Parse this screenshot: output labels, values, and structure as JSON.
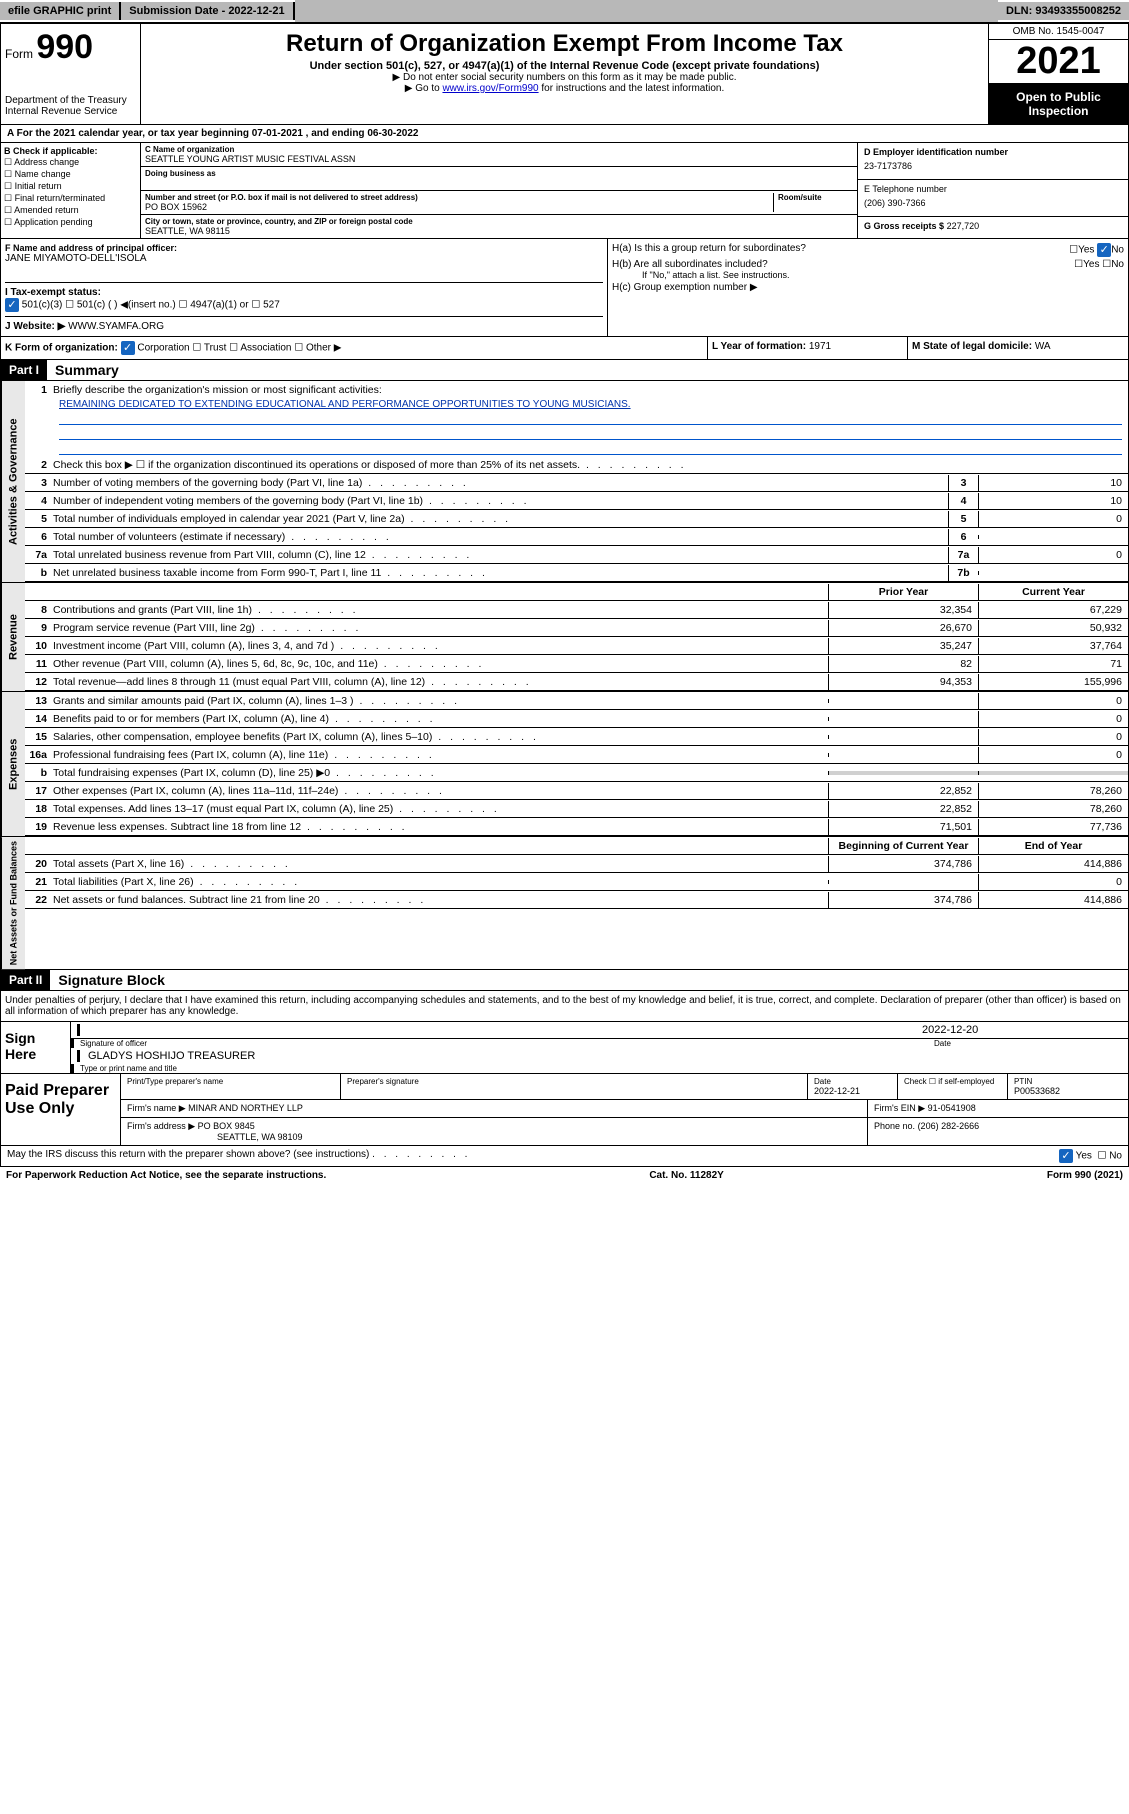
{
  "topbar": {
    "efile": "efile GRAPHIC print",
    "submission": "Submission Date - 2022-12-21",
    "dln": "DLN: 93493355008252"
  },
  "header": {
    "form_prefix": "Form",
    "form_number": "990",
    "dept": "Department of the Treasury",
    "irs": "Internal Revenue Service",
    "title": "Return of Organization Exempt From Income Tax",
    "subtitle": "Under section 501(c), 527, or 4947(a)(1) of the Internal Revenue Code (except private foundations)",
    "note1": "▶ Do not enter social security numbers on this form as it may be made public.",
    "note2_pre": "▶ Go to ",
    "note2_link": "www.irs.gov/Form990",
    "note2_post": " for instructions and the latest information.",
    "omb": "OMB No. 1545-0047",
    "year": "2021",
    "inspection": "Open to Public Inspection"
  },
  "line_a": "A For the 2021 calendar year, or tax year beginning 07-01-2021  , and ending 06-30-2022",
  "section_b": {
    "label": "B Check if applicable:",
    "opts": [
      "Address change",
      "Name change",
      "Initial return",
      "Final return/terminated",
      "Amended return",
      "Application pending"
    ]
  },
  "section_c": {
    "name_label": "C Name of organization",
    "name": "SEATTLE YOUNG ARTIST MUSIC FESTIVAL ASSN",
    "dba_label": "Doing business as",
    "street_label": "Number and street (or P.O. box if mail is not delivered to street address)",
    "room_label": "Room/suite",
    "street": "PO BOX 15962",
    "city_label": "City or town, state or province, country, and ZIP or foreign postal code",
    "city": "SEATTLE, WA  98115"
  },
  "section_d": {
    "label": "D Employer identification number",
    "ein": "23-7173786"
  },
  "section_e": {
    "label": "E Telephone number",
    "phone": "(206) 390-7366"
  },
  "section_g": {
    "label": "G Gross receipts $",
    "amount": "227,720"
  },
  "section_f": {
    "label": "F  Name and address of principal officer:",
    "name": "JANE MIYAMOTO-DELL'ISOLA"
  },
  "section_h": {
    "ha": "H(a)  Is this a group return for subordinates?",
    "hb": "H(b)  Are all subordinates included?",
    "hb_note": "If \"No,\" attach a list. See instructions.",
    "hc": "H(c)  Group exemption number ▶",
    "yes": "Yes",
    "no": "No"
  },
  "section_i": {
    "label": "I   Tax-exempt status:",
    "opts": "501(c)(3)     ☐  501(c) (  ) ◀(insert no.)     ☐  4947(a)(1) or   ☐  527"
  },
  "section_j": {
    "label": "J   Website: ▶",
    "url": "WWW.SYAMFA.ORG"
  },
  "section_k": {
    "label": "K Form of organization:",
    "opts": "Corporation  ☐ Trust  ☐ Association  ☐ Other ▶"
  },
  "section_l": {
    "label": "L Year of formation:",
    "year": "1971"
  },
  "section_m": {
    "label": "M State of legal domicile:",
    "state": "WA"
  },
  "part1": {
    "header": "Part I",
    "title": "Summary",
    "items": [
      {
        "n": "1",
        "d": "Briefly describe the organization's mission or most significant activities:"
      },
      {
        "n": "",
        "d_mission": "REMAINING DEDICATED TO EXTENDING EDUCATIONAL AND PERFORMANCE OPPORTUNITIES TO YOUNG MUSICIANS."
      }
    ],
    "gov_lines": [
      {
        "n": "2",
        "d": "Check this box ▶ ☐  if the organization discontinued its operations or disposed of more than 25% of its net assets."
      },
      {
        "n": "3",
        "d": "Number of voting members of the governing body (Part VI, line 1a)",
        "code": "3",
        "v": "10"
      },
      {
        "n": "4",
        "d": "Number of independent voting members of the governing body (Part VI, line 1b)",
        "code": "4",
        "v": "10"
      },
      {
        "n": "5",
        "d": "Total number of individuals employed in calendar year 2021 (Part V, line 2a)",
        "code": "5",
        "v": "0"
      },
      {
        "n": "6",
        "d": "Total number of volunteers (estimate if necessary)",
        "code": "6",
        "v": ""
      },
      {
        "n": "7a",
        "d": "Total unrelated business revenue from Part VIII, column (C), line 12",
        "code": "7a",
        "v": "0"
      },
      {
        "n": "b",
        "d": "Net unrelated business taxable income from Form 990-T, Part I, line 11",
        "code": "7b",
        "v": ""
      }
    ],
    "rev_header_prior": "Prior Year",
    "rev_header_current": "Current Year",
    "rev_lines": [
      {
        "n": "8",
        "d": "Contributions and grants (Part VIII, line 1h)",
        "p": "32,354",
        "c": "67,229"
      },
      {
        "n": "9",
        "d": "Program service revenue (Part VIII, line 2g)",
        "p": "26,670",
        "c": "50,932"
      },
      {
        "n": "10",
        "d": "Investment income (Part VIII, column (A), lines 3, 4, and 7d )",
        "p": "35,247",
        "c": "37,764"
      },
      {
        "n": "11",
        "d": "Other revenue (Part VIII, column (A), lines 5, 6d, 8c, 9c, 10c, and 11e)",
        "p": "82",
        "c": "71"
      },
      {
        "n": "12",
        "d": "Total revenue—add lines 8 through 11 (must equal Part VIII, column (A), line 12)",
        "p": "94,353",
        "c": "155,996"
      }
    ],
    "exp_lines": [
      {
        "n": "13",
        "d": "Grants and similar amounts paid (Part IX, column (A), lines 1–3 )",
        "p": "",
        "c": "0"
      },
      {
        "n": "14",
        "d": "Benefits paid to or for members (Part IX, column (A), line 4)",
        "p": "",
        "c": "0"
      },
      {
        "n": "15",
        "d": "Salaries, other compensation, employee benefits (Part IX, column (A), lines 5–10)",
        "p": "",
        "c": "0"
      },
      {
        "n": "16a",
        "d": "Professional fundraising fees (Part IX, column (A), line 11e)",
        "p": "",
        "c": "0"
      },
      {
        "n": "b",
        "d": "Total fundraising expenses (Part IX, column (D), line 25) ▶0",
        "p": "shaded",
        "c": "shaded"
      },
      {
        "n": "17",
        "d": "Other expenses (Part IX, column (A), lines 11a–11d, 11f–24e)",
        "p": "22,852",
        "c": "78,260"
      },
      {
        "n": "18",
        "d": "Total expenses. Add lines 13–17 (must equal Part IX, column (A), line 25)",
        "p": "22,852",
        "c": "78,260"
      },
      {
        "n": "19",
        "d": "Revenue less expenses. Subtract line 18 from line 12",
        "p": "71,501",
        "c": "77,736"
      }
    ],
    "net_header_begin": "Beginning of Current Year",
    "net_header_end": "End of Year",
    "net_lines": [
      {
        "n": "20",
        "d": "Total assets (Part X, line 16)",
        "p": "374,786",
        "c": "414,886"
      },
      {
        "n": "21",
        "d": "Total liabilities (Part X, line 26)",
        "p": "",
        "c": "0"
      },
      {
        "n": "22",
        "d": "Net assets or fund balances. Subtract line 21 from line 20",
        "p": "374,786",
        "c": "414,886"
      }
    ],
    "vgov": "Activities & Governance",
    "vrev": "Revenue",
    "vexp": "Expenses",
    "vnet": "Net Assets or Fund Balances"
  },
  "part2": {
    "header": "Part II",
    "title": "Signature Block",
    "declaration": "Under penalties of perjury, I declare that I have examined this return, including accompanying schedules and statements, and to the best of my knowledge and belief, it is true, correct, and complete. Declaration of preparer (other than officer) is based on all information of which preparer has any knowledge."
  },
  "sign": {
    "here": "Sign Here",
    "sig_label": "Signature of officer",
    "date_label": "Date",
    "date": "2022-12-20",
    "name": "GLADYS HOSHIJO  TREASURER",
    "name_label": "Type or print name and title"
  },
  "preparer": {
    "label": "Paid Preparer Use Only",
    "name_label": "Print/Type preparer's name",
    "sig_label": "Preparer's signature",
    "date_label": "Date",
    "date": "2022-12-21",
    "check_label": "Check ☐ if self-employed",
    "ptin_label": "PTIN",
    "ptin": "P00533682",
    "firm_name_label": "Firm's name    ▶",
    "firm_name": "MINAR AND NORTHEY LLP",
    "firm_ein_label": "Firm's EIN ▶",
    "firm_ein": "91-0541908",
    "firm_addr_label": "Firm's address ▶",
    "firm_addr1": "PO BOX 9845",
    "firm_addr2": "SEATTLE, WA  98109",
    "phone_label": "Phone no.",
    "phone": "(206) 282-2666"
  },
  "footer": {
    "discuss": "May the IRS discuss this return with the preparer shown above? (see instructions)",
    "yes": "Yes",
    "no": "No",
    "paperwork": "For Paperwork Reduction Act Notice, see the separate instructions.",
    "cat": "Cat. No. 11282Y",
    "form": "Form 990 (2021)"
  }
}
